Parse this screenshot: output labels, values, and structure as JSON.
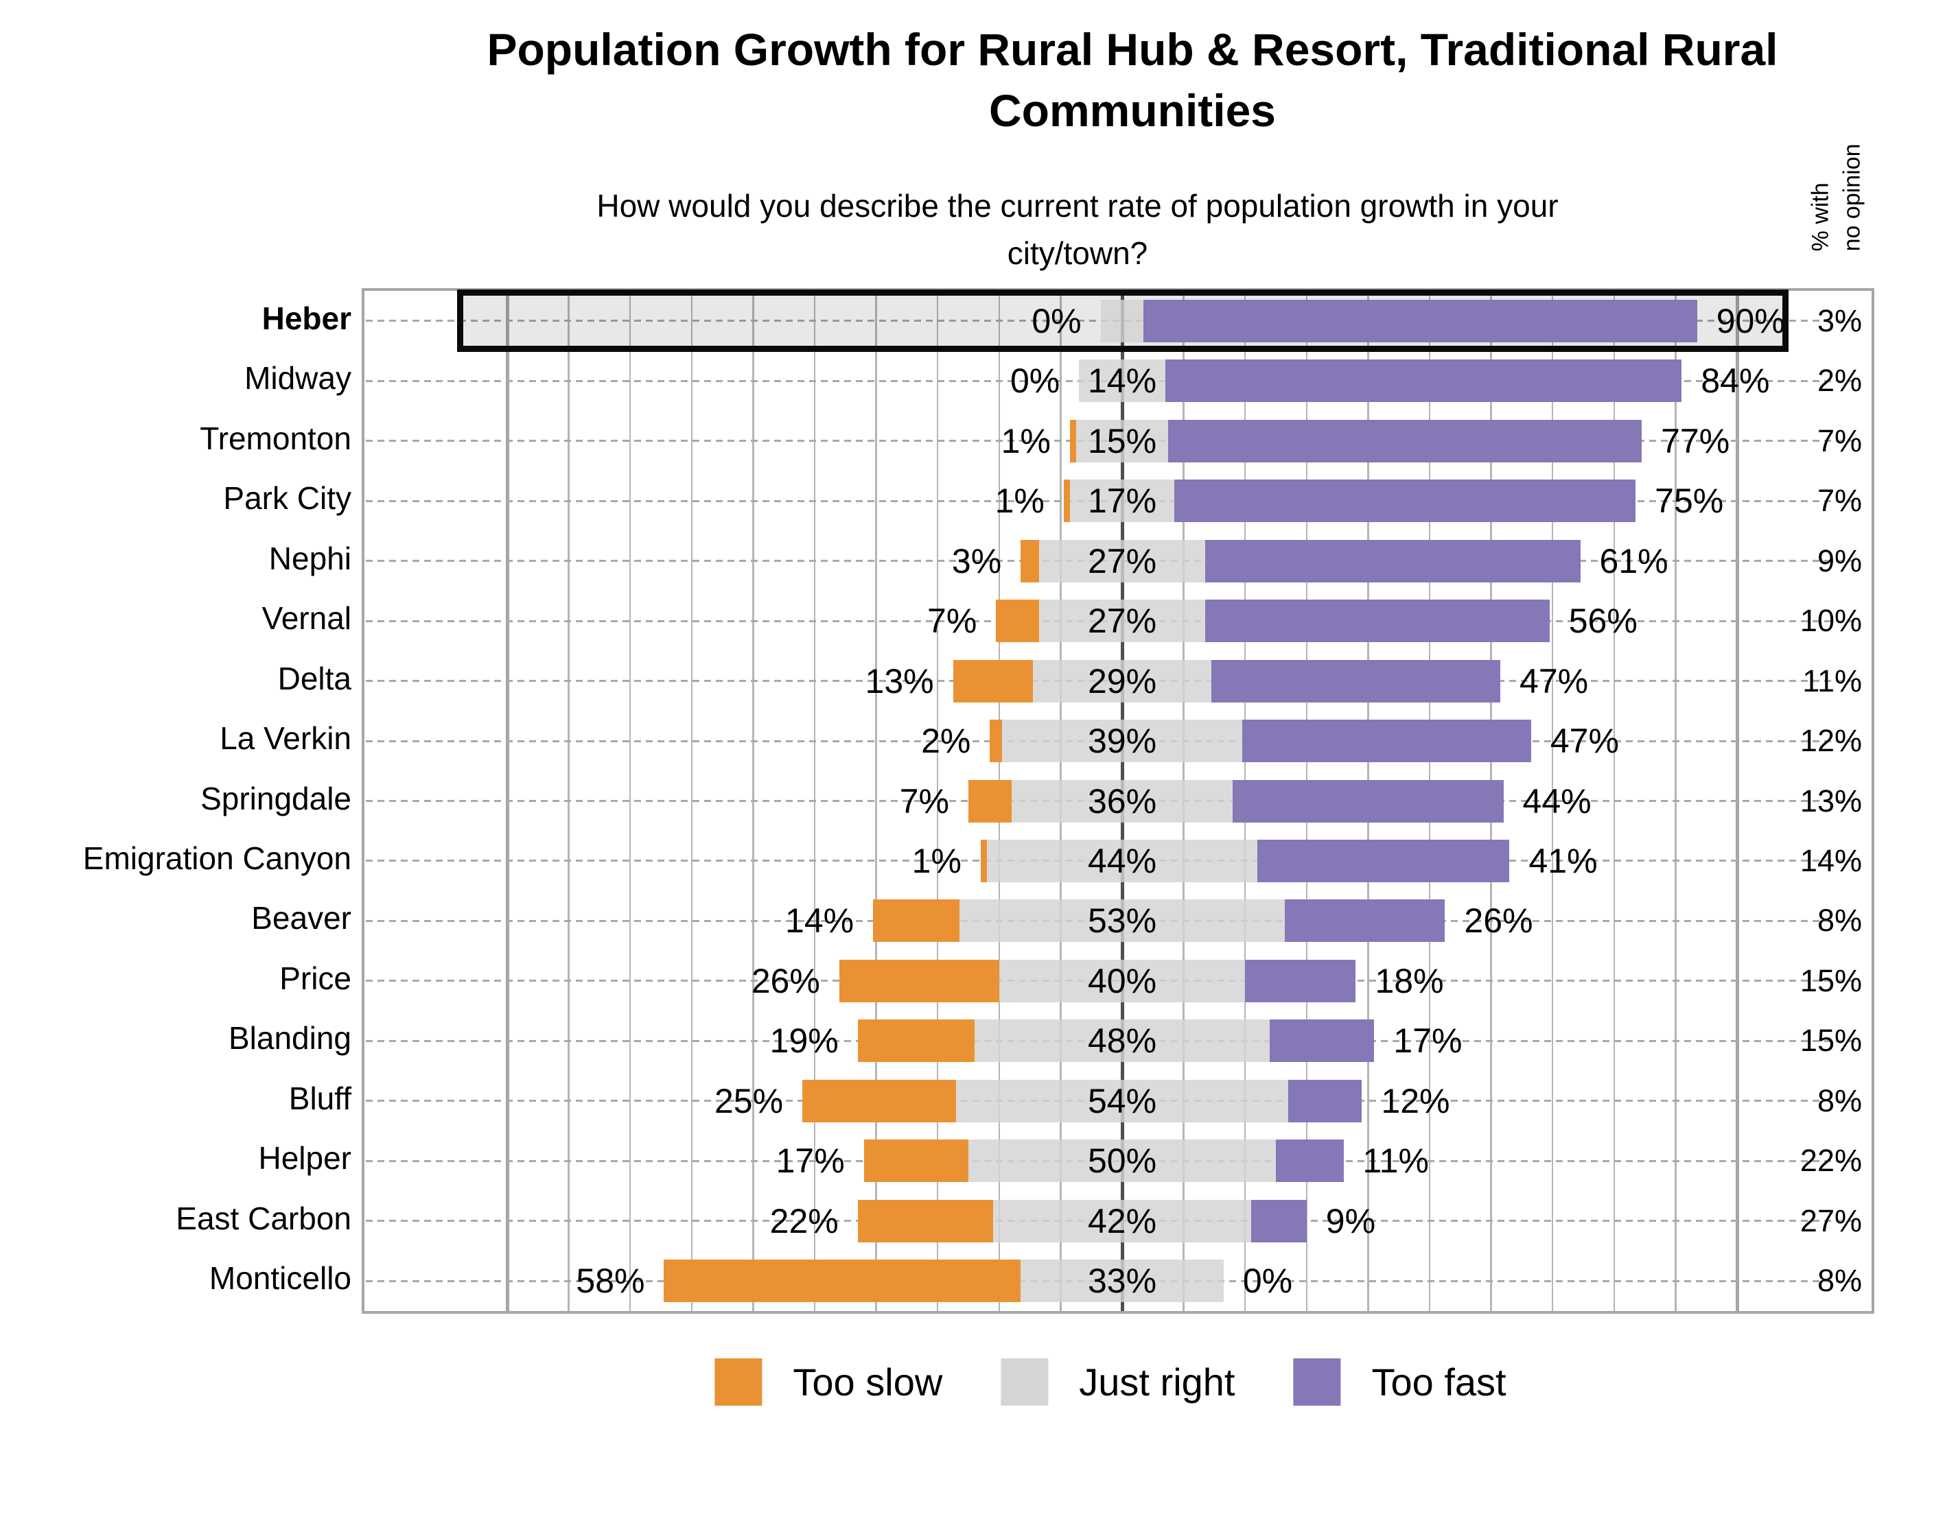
{
  "header": {
    "title": "Population Growth for Rural Hub & Resort, Traditional Rural Communities",
    "subtitle": "How would you describe the current rate of population growth in your city/town?"
  },
  "chart_data": {
    "type": "diverging_stacked_bar",
    "title": "Population Growth for Rural Hub & Resort, Traditional Rural Communities",
    "subtitle": "How would you describe the current rate of population growth in your city/town?",
    "categories": [
      "Heber",
      "Midway",
      "Tremonton",
      "Park City",
      "Nephi",
      "Vernal",
      "Delta",
      "La Verkin",
      "Springdale",
      "Emigration Canyon",
      "Beaver",
      "Price",
      "Blanding",
      "Bluff",
      "Helper",
      "East Carbon",
      "Monticello"
    ],
    "series": [
      {
        "name": "Too slow",
        "color": "#EA9233",
        "values": [
          0,
          0,
          1,
          1,
          3,
          7,
          13,
          2,
          7,
          1,
          14,
          26,
          19,
          25,
          17,
          22,
          58
        ]
      },
      {
        "name": "Just right",
        "color": "#D6D6D6",
        "values": [
          7,
          14,
          15,
          17,
          27,
          27,
          29,
          39,
          36,
          44,
          53,
          40,
          48,
          54,
          50,
          42,
          33
        ]
      },
      {
        "name": "Too fast",
        "color": "#8677B7",
        "values": [
          90,
          84,
          77,
          75,
          61,
          56,
          47,
          47,
          44,
          41,
          26,
          18,
          17,
          12,
          11,
          9,
          0
        ]
      }
    ],
    "no_opinion": {
      "label": "% with\nno opinion",
      "values": [
        3,
        2,
        7,
        7,
        9,
        10,
        11,
        12,
        13,
        14,
        8,
        15,
        15,
        8,
        22,
        27,
        8
      ]
    },
    "value_suffix": "%",
    "highlight_category": "Heber",
    "hidden_labels": [
      {
        "category": "Heber",
        "series": "Just right"
      }
    ],
    "axis": {
      "min": -123,
      "max": 122,
      "grid_step": 10,
      "grid_range": [
        -100,
        100
      ],
      "emphasized": [
        -100,
        0,
        100
      ],
      "center_color": "#4F4F4F",
      "major_color": "#A6A6A6",
      "minor_color": "#B5B5B5"
    },
    "legend_position": "bottom"
  }
}
